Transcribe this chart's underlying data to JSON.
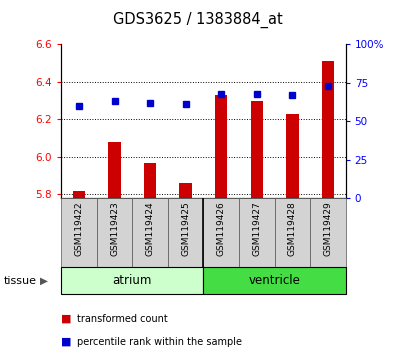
{
  "title": "GDS3625 / 1383884_at",
  "samples": [
    "GSM119422",
    "GSM119423",
    "GSM119424",
    "GSM119425",
    "GSM119426",
    "GSM119427",
    "GSM119428",
    "GSM119429"
  ],
  "transformed_count": [
    5.82,
    6.08,
    5.97,
    5.86,
    6.33,
    6.3,
    6.23,
    6.51
  ],
  "percentile_rank": [
    60,
    63,
    62,
    61,
    68,
    68,
    67,
    73
  ],
  "ylim_left": [
    5.78,
    6.6
  ],
  "ylim_right": [
    0,
    100
  ],
  "yticks_left": [
    5.8,
    6.0,
    6.2,
    6.4,
    6.6
  ],
  "yticks_right": [
    0,
    25,
    50,
    75,
    100
  ],
  "ytick_labels_right": [
    "0",
    "25",
    "50",
    "75",
    "100%"
  ],
  "bar_color": "#cc0000",
  "dot_color": "#0000cc",
  "tissue_groups": [
    {
      "label": "atrium",
      "indices": [
        0,
        1,
        2,
        3
      ],
      "color": "#ccffcc"
    },
    {
      "label": "ventricle",
      "indices": [
        4,
        5,
        6,
        7
      ],
      "color": "#44dd44"
    }
  ],
  "tissue_label": "tissue",
  "legend_bar_label": "transformed count",
  "legend_dot_label": "percentile rank within the sample",
  "bar_bottom": 5.78
}
